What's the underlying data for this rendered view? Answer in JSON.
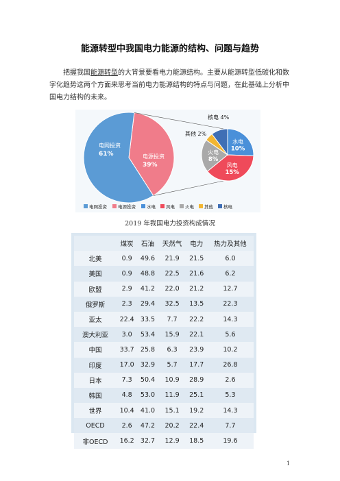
{
  "title": "能源转型中我国电力能源的结构、问题与趋势",
  "paragraph": {
    "before": "把握我国",
    "link": "能源转型",
    "after": "的大背景要看电力能源结构。主要从能源转型低碳化和数字化趋势这两个方面来思考当前电力能源结构的特点与问题，在此基础上分析中国电力结构的未来。"
  },
  "chart_data": [
    {
      "type": "pie",
      "title": "",
      "slices": [
        {
          "label": "电网投资",
          "value": 61,
          "value_text": "61%",
          "color": "#5b9bd5"
        },
        {
          "label": "电源投资",
          "value": 39,
          "value_text": "39%",
          "color": "#f07c8a"
        }
      ]
    },
    {
      "type": "pie",
      "title": "",
      "slices": [
        {
          "label": "水电",
          "value": 10,
          "value_text": "10%",
          "color": "#4a90d9"
        },
        {
          "label": "风电",
          "value": 15,
          "value_text": "15%",
          "color": "#ef4a5a"
        },
        {
          "label": "火电",
          "value": 8,
          "value_text": "8%",
          "color": "#a9a9a9"
        },
        {
          "label": "其他",
          "value": 2,
          "value_text": "2%",
          "color": "#f3b632"
        },
        {
          "label": "核电",
          "value": 4,
          "value_text": "4%",
          "color": "#3f6fb5"
        }
      ]
    }
  ],
  "legend": [
    {
      "label": "电网投资",
      "color": "#5b9bd5"
    },
    {
      "label": "电源投资",
      "color": "#f07c8a"
    },
    {
      "label": "水电",
      "color": "#4a90d9"
    },
    {
      "label": "风电",
      "color": "#ef4a5a"
    },
    {
      "label": "火电",
      "color": "#a9a9a9"
    },
    {
      "label": "其他",
      "color": "#f3b632"
    },
    {
      "label": "核电",
      "color": "#3f6fb5"
    }
  ],
  "caption": "2019 年我国电力投资构成情况",
  "table": {
    "headers": [
      "",
      "煤炭",
      "石油",
      "天然气",
      "电力",
      "热力及其他"
    ],
    "rows": [
      [
        "北美",
        "0.9",
        "49.6",
        "21.9",
        "21.5",
        "6.0"
      ],
      [
        "美国",
        "0.9",
        "48.8",
        "22.5",
        "21.6",
        "6.2"
      ],
      [
        "欧盟",
        "2.9",
        "41.2",
        "22.0",
        "21.2",
        "12.7"
      ],
      [
        "俄罗斯",
        "2.3",
        "29.4",
        "32.5",
        "13.5",
        "22.3"
      ],
      [
        "亚太",
        "22.4",
        "33.5",
        "7.7",
        "22.2",
        "14.3"
      ],
      [
        "澳大利亚",
        "3.0",
        "53.4",
        "15.9",
        "22.1",
        "5.6"
      ],
      [
        "中国",
        "33.7",
        "25.8",
        "6.3",
        "23.9",
        "10.2"
      ],
      [
        "印度",
        "17.0",
        "32.9",
        "5.7",
        "17.7",
        "26.8"
      ],
      [
        "日本",
        "7.3",
        "50.4",
        "10.9",
        "28.9",
        "2.6"
      ],
      [
        "韩国",
        "4.8",
        "53.0",
        "11.9",
        "25.1",
        "5.3"
      ],
      [
        "世界",
        "10.4",
        "41.0",
        "15.1",
        "19.2",
        "14.3"
      ],
      [
        "OECD",
        "2.6",
        "47.2",
        "20.2",
        "22.4",
        "7.7"
      ],
      [
        "非OECD",
        "16.2",
        "32.7",
        "12.9",
        "18.5",
        "19.6"
      ]
    ]
  },
  "page_number": "1"
}
